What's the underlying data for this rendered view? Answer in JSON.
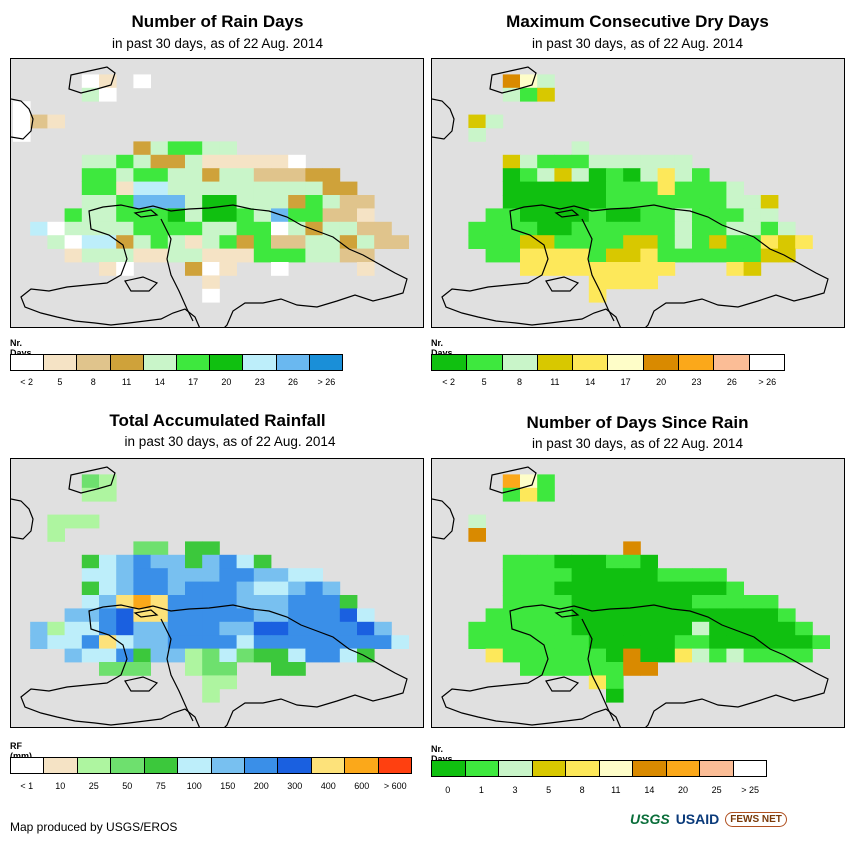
{
  "panels": [
    {
      "id": "rain-days",
      "title": "Number of Rain Days",
      "subtitle": "in past 30 days, as of 22 Aug. 2014",
      "legend_title": "Nr. Days",
      "legend_colors": [
        "#ffffff",
        "#f5e3c5",
        "#e0c48c",
        "#cfa23a",
        "#c9f5c9",
        "#3ee83e",
        "#10c010",
        "#bdeefa",
        "#6ab8f0",
        "#1a8fd8"
      ],
      "legend_ticks": [
        "< 2",
        "5",
        "8",
        "11",
        "14",
        "17",
        "20",
        "23",
        "26",
        "> 26"
      ],
      "cells": [
        "........................",
        "....AB.A................",
        "....EA..................",
        "A.......................",
        "ACB.....................",
        "A.......................",
        ".......DEFFEE............",
        "....EEFEDDEBBBBBA.......",
        "....FFEFFEEDEECCCDD.....",
        "....FFBHHEEEEEEEEEDD....",
        "....EEFIIIEGGEEEDFECC...",
        "...FEEFFFGEGGFEIFFCCB...",
        ".HAEEEEFFFFEEFFAEDEECC..",
        "..EAHHDEFEBEFDFCCEEDECC.",
        "...BEEEBBEEBBBFFFEECC...",
        ".....BA...DAB..A....B...",
        "...........B............",
        "...........A............",
        "........................",
        "........................"
      ]
    },
    {
      "id": "max-dry-days",
      "title": "Maximum Consecutive Dry Days",
      "subtitle": "in past 30 days, as of 22 Aug. 2014",
      "legend_title": "Nr. Days",
      "legend_colors": [
        "#10c010",
        "#3ee83e",
        "#c9f5c9",
        "#d8c800",
        "#fde85a",
        "#fefdc8",
        "#d98a00",
        "#fba81a",
        "#fbbd96",
        "#ffffff"
      ],
      "legend_ticks": [
        "< 2",
        "5",
        "8",
        "11",
        "14",
        "17",
        "20",
        "23",
        "26",
        "> 26"
      ],
      "cells": [
        "........................",
        "....GFC.................",
        "....CBD.................",
        "........................",
        "..DC....................",
        "..C.....................",
        "........C...............",
        "....DCBBBCCCCCC.........",
        "....ABCDCABACECB........",
        "....AAAAAABBBEBBBC......",
        "....AAAAAABBBBBBBCCD....",
        "...BBAAAABAABBCBBBCC....",
        "..BBBBAABBBBBBCBBCCBC...",
        "..BBBDDBBBBDDBCBDBBEDE..",
        "...BBEEEEBDDEBBBBBBDD...",
        ".....EEEEEEEEE...ED.....",
        ".........EEEE...........",
        ".........E..............",
        "........................",
        "........................"
      ]
    },
    {
      "id": "total-rainfall",
      "title": "Total Accumulated Rainfall",
      "subtitle": "in past 30 days, as of 22 Aug. 2014",
      "legend_title": "RF (mm)",
      "legend_colors": [
        "#ffffff",
        "#f5e3c5",
        "#aef5a0",
        "#6ee06e",
        "#3cc83c",
        "#bdeefa",
        "#78c0f0",
        "#3a8fe8",
        "#1a60e0",
        "#fde27a",
        "#fba81a",
        "#ff4010"
      ],
      "legend_ticks": [
        "< 1",
        "10",
        "25",
        "50",
        "75",
        "100",
        "150",
        "200",
        "300",
        "400",
        "600",
        "> 600"
      ],
      "cells": [
        "........................",
        "....DC..................",
        "....CC..................",
        "........................",
        "..CCC...................",
        "..C.....................",
        ".......DD.EE............",
        "....EFGHGGEGHFE.........",
        "....FFGHHGGGHHGGFF......",
        "....EFGHHGHHHGFFGHG.....",
        "....FGJKJHHHHGGGHHHE....",
        "...GGHIJJHHHHHGGHHHIF...",
        ".GCFFHIGGHHHGGIIHHHHIG..",
        ".GFFHJFGGHHHHFHHHHHHHHF.",
        "...GFFHEGGCDFDEEFHHFE...",
        ".....DDD..CDD..EE.......",
        "...........CC...........",
        "...........C............",
        "........................",
        "........................"
      ]
    },
    {
      "id": "days-since-rain",
      "title": "Number of Days Since Rain",
      "subtitle": "in past 30 days, as of 22 Aug. 2014",
      "legend_title": "Nr. Days",
      "legend_colors": [
        "#10c010",
        "#3ee83e",
        "#c9f5c9",
        "#d8c800",
        "#fde85a",
        "#fefdc8",
        "#d98a00",
        "#fba81a",
        "#fbbd96",
        "#ffffff"
      ],
      "legend_ticks": [
        "0",
        "1",
        "3",
        "5",
        "8",
        "11",
        "14",
        "20",
        "25",
        "> 25"
      ],
      "cells": [
        "........................",
        "....HFB.................",
        "....BEB.................",
        "........................",
        "..C.....................",
        "..G.....................",
        "...........G............",
        "....BBBAAABBA...........",
        "....BBBBAAAAABBBB.......",
        "....BBBAAAAAAAAAAB......",
        "....BBBBAAAAAAABBBBB....",
        "...BBBBBAAAAAAAAAAAAB...",
        "..BBBBBBAAAAAAACAAAAAB..",
        "..BBBBBBBAAAAABBAAAAAAB.",
        "...EBBBBBBAGAAECBCBBBB..",
        ".....BBBBBBGG...........",
        ".........EB.............",
        "..........A.............",
        "........................",
        "........................"
      ]
    }
  ],
  "credit": "Map produced by USGS/EROS",
  "logos": {
    "usgs": "USGS",
    "usaid": "USAID",
    "fews": "FEWS NET"
  }
}
